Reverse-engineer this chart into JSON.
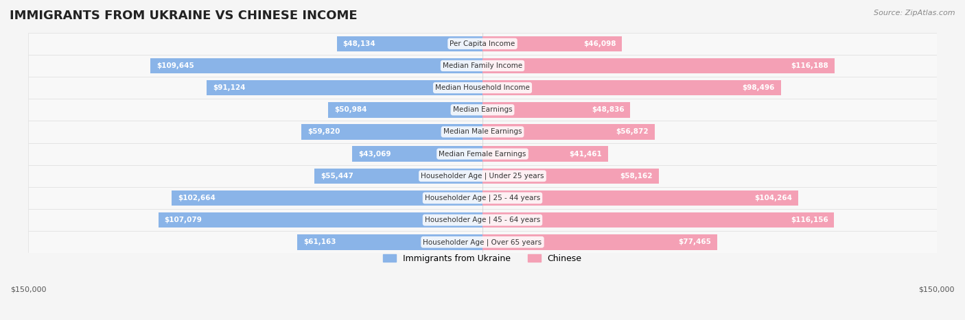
{
  "title": "IMMIGRANTS FROM UKRAINE VS CHINESE INCOME",
  "source": "Source: ZipAtlas.com",
  "categories": [
    "Per Capita Income",
    "Median Family Income",
    "Median Household Income",
    "Median Earnings",
    "Median Male Earnings",
    "Median Female Earnings",
    "Householder Age | Under 25 years",
    "Householder Age | 25 - 44 years",
    "Householder Age | 45 - 64 years",
    "Householder Age | Over 65 years"
  ],
  "ukraine_values": [
    48134,
    109645,
    91124,
    50984,
    59820,
    43069,
    55447,
    102664,
    107079,
    61163
  ],
  "chinese_values": [
    46098,
    116188,
    98496,
    48836,
    56872,
    41461,
    58162,
    104264,
    116156,
    77465
  ],
  "ukraine_labels": [
    "$48,134",
    "$109,645",
    "$91,124",
    "$50,984",
    "$59,820",
    "$43,069",
    "$55,447",
    "$102,664",
    "$107,079",
    "$61,163"
  ],
  "chinese_labels": [
    "$46,098",
    "$116,188",
    "$98,496",
    "$48,836",
    "$56,872",
    "$41,461",
    "$58,162",
    "$104,264",
    "$116,156",
    "$77,465"
  ],
  "ukraine_color": "#8ab4e8",
  "chinese_color": "#f4a0b5",
  "ukraine_color_dark": "#5b9bd5",
  "chinese_color_dark": "#f06292",
  "max_value": 150000,
  "bg_color": "#f5f5f5",
  "row_bg": "#ffffff",
  "row_alt_bg": "#f0f0f0",
  "legend_ukraine": "Immigrants from Ukraine",
  "legend_chinese": "Chinese"
}
